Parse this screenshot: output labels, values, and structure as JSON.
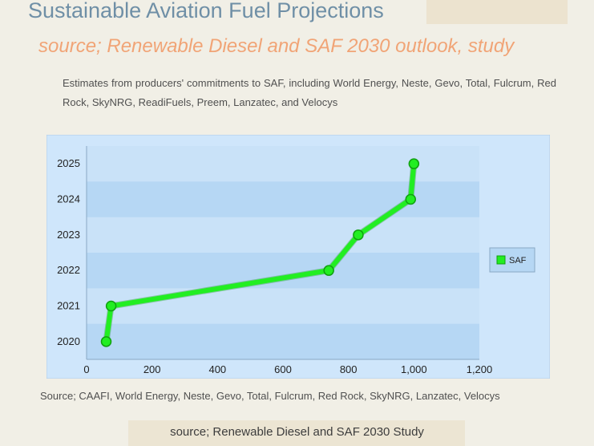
{
  "page": {
    "title": "Sustainable Aviation Fuel Projections",
    "subtitle": "source; Renewable Diesel and SAF 2030 outlook, study",
    "description": "Estimates from producers' commitments to SAF, including World Energy, Neste, Gevo, Total, Fulcrum, Red Rock, SkyNRG, ReadiFuels, Preem, Lanzatec, and Velocys",
    "source_note": "Source; CAAFI, World Energy, Neste, Gevo, Total, Fulcrum, Red Rock, SkyNRG, Lanzatec, Velocys",
    "footer": "source; Renewable Diesel and SAF 2030 Study"
  },
  "chart_data": {
    "type": "line",
    "series": [
      {
        "name": "SAF",
        "color": "#22ee22",
        "points": [
          {
            "x": 60,
            "y": 2020
          },
          {
            "x": 75,
            "y": 2021
          },
          {
            "x": 740,
            "y": 2022
          },
          {
            "x": 830,
            "y": 2023
          },
          {
            "x": 990,
            "y": 2024
          },
          {
            "x": 1000,
            "y": 2025
          }
        ]
      }
    ],
    "xlim": [
      0,
      1200
    ],
    "x_ticks": [
      0,
      200,
      400,
      600,
      800,
      1000,
      1200
    ],
    "x_tick_labels": [
      "0",
      "200",
      "400",
      "600",
      "800",
      "1,000",
      "1,200"
    ],
    "y_ticks": [
      2020,
      2021,
      2022,
      2023,
      2024,
      2025
    ],
    "y_tick_labels": [
      "2020",
      "2021",
      "2022",
      "2023",
      "2024",
      "2025"
    ],
    "legend": {
      "position": "right",
      "label": "SAF"
    },
    "grid": "horizontal bands",
    "colors": {
      "panel_bg": "#cfe6fb",
      "plot_bg": "#b6d7f4",
      "band_light": "#c9e2f8",
      "line": "#22ee22",
      "marker_edge": "#10a010"
    }
  }
}
